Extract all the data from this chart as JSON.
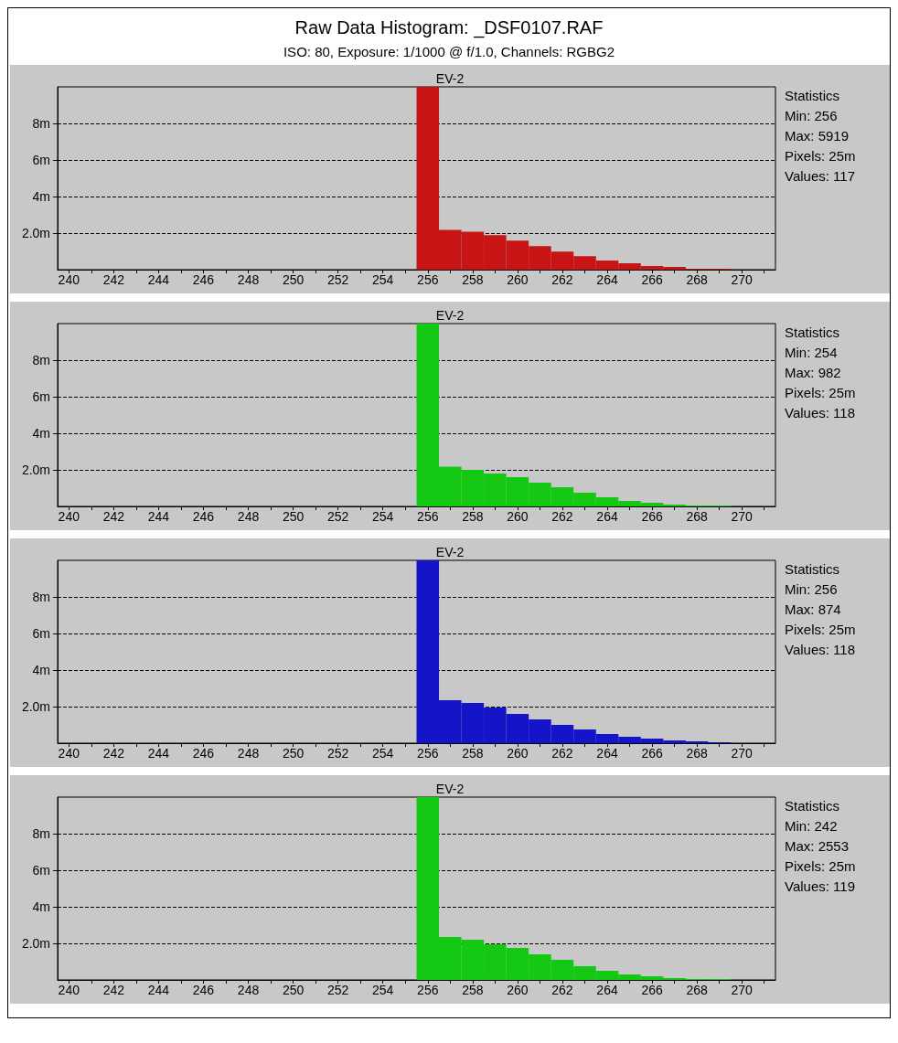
{
  "chart_data": [
    {
      "type": "other",
      "title": "Raw Data Histogram: _DSF0107.RAF",
      "subtitle": "ISO: 80, Exposure: 1/1000 @ f/1.0, Channels: RGBG2"
    },
    {
      "type": "histogram",
      "title": "EV-2",
      "color": "#c81414",
      "bins": [
        255.5,
        256.5,
        257.5,
        258.5,
        259.5,
        260.5,
        261.5,
        262.5,
        263.5,
        264.5,
        265.5,
        266.5,
        267.5,
        268.5,
        269.5
      ],
      "values": [
        10,
        2.18,
        2.08,
        1.89,
        1.59,
        1.29,
        0.99,
        0.74,
        0.5,
        0.35,
        0.2,
        0.15,
        0.05,
        0.05
      ],
      "xlim": [
        239.5,
        271.5
      ],
      "xticks": [
        240,
        {
          "value": 241,
          "label": null
        },
        242,
        {
          "value": 243,
          "label": null
        },
        244,
        {
          "value": 245,
          "label": null
        },
        246,
        {
          "value": 247,
          "label": null
        },
        248,
        {
          "value": 249,
          "label": null
        },
        250,
        {
          "value": 251,
          "label": null
        },
        252,
        {
          "value": 253,
          "label": null
        },
        254,
        {
          "value": 255,
          "label": null
        },
        256,
        {
          "value": 257,
          "label": null
        },
        258,
        {
          "value": 259,
          "label": null
        },
        260,
        {
          "value": 261,
          "label": null
        },
        262,
        {
          "value": 263,
          "label": null
        },
        264,
        {
          "value": 265,
          "label": null
        },
        266,
        {
          "value": 267,
          "label": null
        },
        268,
        {
          "value": 269,
          "label": null
        },
        270,
        {
          "value": 271,
          "label": null
        }
      ],
      "ylim": [
        0,
        10
      ],
      "yticks": [
        {
          "value": 2,
          "label": "2.0m"
        },
        {
          "value": 4,
          "label": "4m"
        },
        {
          "value": 6,
          "label": "6m"
        },
        {
          "value": 8,
          "label": "8m"
        }
      ],
      "grid": "y",
      "annotations": [
        "Statistics",
        "Min: 256",
        "Max: 5919",
        "Pixels: 25m",
        "Values: 117"
      ]
    },
    {
      "type": "histogram",
      "title": "EV-2",
      "color": "#14c814",
      "bins": [
        255.5,
        256.5,
        257.5,
        258.5,
        259.5,
        260.5,
        261.5,
        262.5,
        263.5,
        264.5,
        265.5,
        266.5,
        267.5,
        268.5,
        269.5
      ],
      "values": [
        10,
        2.17,
        2.0,
        1.8,
        1.6,
        1.3,
        1.05,
        0.75,
        0.5,
        0.3,
        0.2,
        0.1,
        0.05,
        0.05
      ],
      "xlim": [
        239.5,
        271.5
      ],
      "xticks": [
        240,
        {
          "value": 241,
          "label": null
        },
        242,
        {
          "value": 243,
          "label": null
        },
        244,
        {
          "value": 245,
          "label": null
        },
        246,
        {
          "value": 247,
          "label": null
        },
        248,
        {
          "value": 249,
          "label": null
        },
        250,
        {
          "value": 251,
          "label": null
        },
        252,
        {
          "value": 253,
          "label": null
        },
        254,
        {
          "value": 255,
          "label": null
        },
        256,
        {
          "value": 257,
          "label": null
        },
        258,
        {
          "value": 259,
          "label": null
        },
        260,
        {
          "value": 261,
          "label": null
        },
        262,
        {
          "value": 263,
          "label": null
        },
        264,
        {
          "value": 265,
          "label": null
        },
        266,
        {
          "value": 267,
          "label": null
        },
        268,
        {
          "value": 269,
          "label": null
        },
        270,
        {
          "value": 271,
          "label": null
        }
      ],
      "ylim": [
        0,
        10
      ],
      "yticks": [
        {
          "value": 2,
          "label": "2.0m"
        },
        {
          "value": 4,
          "label": "4m"
        },
        {
          "value": 6,
          "label": "6m"
        },
        {
          "value": 8,
          "label": "8m"
        }
      ],
      "grid": "y",
      "annotations": [
        "Statistics",
        "Min: 254",
        "Max: 982",
        "Pixels: 25m",
        "Values: 118"
      ]
    },
    {
      "type": "histogram",
      "title": "EV-2",
      "color": "#1414c8",
      "bins": [
        255.5,
        256.5,
        257.5,
        258.5,
        259.5,
        260.5,
        261.5,
        262.5,
        263.5,
        264.5,
        265.5,
        266.5,
        267.5,
        268.5,
        269.5
      ],
      "values": [
        10,
        2.35,
        2.2,
        1.95,
        1.6,
        1.3,
        1.0,
        0.75,
        0.5,
        0.35,
        0.25,
        0.15,
        0.1,
        0.05
      ],
      "xlim": [
        239.5,
        271.5
      ],
      "xticks": [
        240,
        {
          "value": 241,
          "label": null
        },
        242,
        {
          "value": 243,
          "label": null
        },
        244,
        {
          "value": 245,
          "label": null
        },
        246,
        {
          "value": 247,
          "label": null
        },
        248,
        {
          "value": 249,
          "label": null
        },
        250,
        {
          "value": 251,
          "label": null
        },
        252,
        {
          "value": 253,
          "label": null
        },
        254,
        {
          "value": 255,
          "label": null
        },
        256,
        {
          "value": 257,
          "label": null
        },
        258,
        {
          "value": 259,
          "label": null
        },
        260,
        {
          "value": 261,
          "label": null
        },
        262,
        {
          "value": 263,
          "label": null
        },
        264,
        {
          "value": 265,
          "label": null
        },
        266,
        {
          "value": 267,
          "label": null
        },
        268,
        {
          "value": 269,
          "label": null
        },
        270,
        {
          "value": 271,
          "label": null
        }
      ],
      "ylim": [
        0,
        10
      ],
      "yticks": [
        {
          "value": 2,
          "label": "2.0m"
        },
        {
          "value": 4,
          "label": "4m"
        },
        {
          "value": 6,
          "label": "6m"
        },
        {
          "value": 8,
          "label": "8m"
        }
      ],
      "grid": "y",
      "annotations": [
        "Statistics",
        "Min: 256",
        "Max: 874",
        "Pixels: 25m",
        "Values: 118"
      ]
    },
    {
      "type": "histogram",
      "title": "EV-2",
      "color": "#14c814",
      "bins": [
        255.5,
        256.5,
        257.5,
        258.5,
        259.5,
        260.5,
        261.5,
        262.5,
        263.5,
        264.5,
        265.5,
        266.5,
        267.5,
        268.5,
        269.5
      ],
      "values": [
        10,
        2.35,
        2.2,
        1.95,
        1.75,
        1.4,
        1.1,
        0.75,
        0.5,
        0.3,
        0.2,
        0.1,
        0.05,
        0.05
      ],
      "xlim": [
        239.5,
        271.5
      ],
      "xticks": [
        240,
        {
          "value": 241,
          "label": null
        },
        242,
        {
          "value": 243,
          "label": null
        },
        244,
        {
          "value": 245,
          "label": null
        },
        246,
        {
          "value": 247,
          "label": null
        },
        248,
        {
          "value": 249,
          "label": null
        },
        250,
        {
          "value": 251,
          "label": null
        },
        252,
        {
          "value": 253,
          "label": null
        },
        254,
        {
          "value": 255,
          "label": null
        },
        256,
        {
          "value": 257,
          "label": null
        },
        258,
        {
          "value": 259,
          "label": null
        },
        260,
        {
          "value": 261,
          "label": null
        },
        262,
        {
          "value": 263,
          "label": null
        },
        264,
        {
          "value": 265,
          "label": null
        },
        266,
        {
          "value": 267,
          "label": null
        },
        268,
        {
          "value": 269,
          "label": null
        },
        270,
        {
          "value": 271,
          "label": null
        }
      ],
      "ylim": [
        0,
        10
      ],
      "yticks": [
        {
          "value": 2,
          "label": "2.0m"
        },
        {
          "value": 4,
          "label": "4m"
        },
        {
          "value": 6,
          "label": "6m"
        },
        {
          "value": 8,
          "label": "8m"
        }
      ],
      "grid": "y",
      "annotations": [
        "Statistics",
        "Min: 242",
        "Max: 2553",
        "Pixels: 25m",
        "Values: 119"
      ]
    }
  ]
}
